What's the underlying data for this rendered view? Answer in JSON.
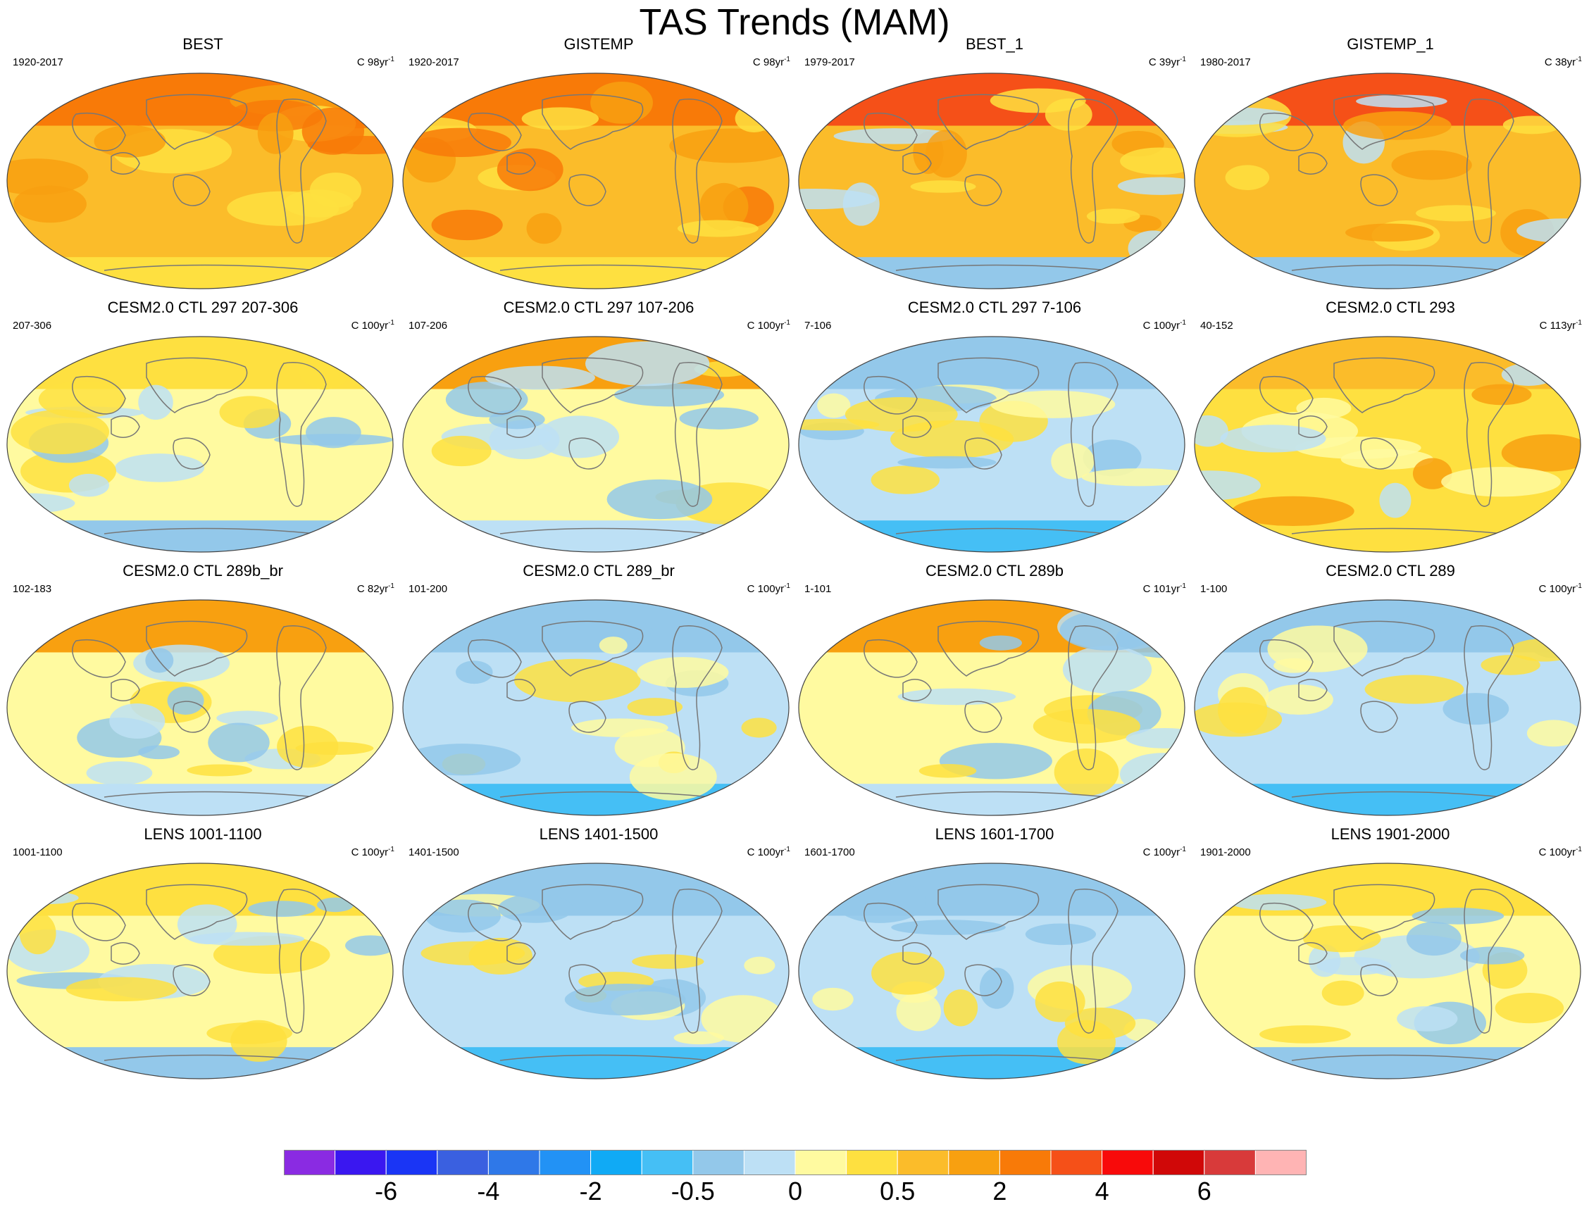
{
  "title": "TAS Trends (MAM)",
  "panels": [
    {
      "title": "BEST",
      "period": "1920-2017",
      "units_prefix": "C 98yr",
      "units_exp": "-1",
      "pattern": "warm"
    },
    {
      "title": "GISTEMP",
      "period": "1920-2017",
      "units_prefix": "C 98yr",
      "units_exp": "-1",
      "pattern": "warm"
    },
    {
      "title": "BEST_1",
      "period": "1979-2017",
      "units_prefix": "C 39yr",
      "units_exp": "-1",
      "pattern": "warm-recent"
    },
    {
      "title": "GISTEMP_1",
      "period": "1980-2017",
      "units_prefix": "C 38yr",
      "units_exp": "-1",
      "pattern": "warm-recent"
    },
    {
      "title": "CESM2.0 CTL 297 207-306",
      "period": "207-306",
      "units_prefix": "C 100yr",
      "units_exp": "-1",
      "pattern": "neutral-a"
    },
    {
      "title": "CESM2.0 CTL 297 107-206",
      "period": "107-206",
      "units_prefix": "C 100yr",
      "units_exp": "-1",
      "pattern": "neutral-warm-north"
    },
    {
      "title": "CESM2.0 CTL 297 7-106",
      "period": "7-106",
      "units_prefix": "C 100yr",
      "units_exp": "-1",
      "pattern": "neutral-cool"
    },
    {
      "title": "CESM2.0 CTL 293",
      "period": "40-152",
      "units_prefix": "C 113yr",
      "units_exp": "-1",
      "pattern": "neutral-warm"
    },
    {
      "title": "CESM2.0 CTL 289b_br",
      "period": "102-183",
      "units_prefix": "C 82yr",
      "units_exp": "-1",
      "pattern": "neutral-warm-north"
    },
    {
      "title": "CESM2.0 CTL 289_br",
      "period": "101-200",
      "units_prefix": "C 100yr",
      "units_exp": "-1",
      "pattern": "neutral-cool"
    },
    {
      "title": "CESM2.0 CTL 289b",
      "period": "1-101",
      "units_prefix": "C 101yr",
      "units_exp": "-1",
      "pattern": "neutral-warm-north"
    },
    {
      "title": "CESM2.0 CTL 289",
      "period": "1-100",
      "units_prefix": "C 100yr",
      "units_exp": "-1",
      "pattern": "neutral-cool"
    },
    {
      "title": "LENS 1001-1100",
      "period": "1001-1100",
      "units_prefix": "C 100yr",
      "units_exp": "-1",
      "pattern": "neutral-a"
    },
    {
      "title": "LENS 1401-1500",
      "period": "1401-1500",
      "units_prefix": "C 100yr",
      "units_exp": "-1",
      "pattern": "neutral-cool"
    },
    {
      "title": "LENS 1601-1700",
      "period": "1601-1700",
      "units_prefix": "C 100yr",
      "units_exp": "-1",
      "pattern": "neutral-cool"
    },
    {
      "title": "LENS 1901-2000",
      "period": "1901-2000",
      "units_prefix": "C 100yr",
      "units_exp": "-1",
      "pattern": "neutral-a"
    }
  ],
  "colorbar": {
    "colors": [
      "#8a2be2",
      "#3a17f0",
      "#1a35f5",
      "#3a60e0",
      "#2f78e8",
      "#2292f5",
      "#10aaf5",
      "#45bff5",
      "#93c8ea",
      "#bde0f5",
      "#fffaa0",
      "#fee040",
      "#fbbc2a",
      "#f8a010",
      "#f87a08",
      "#f55018",
      "#f80a0a",
      "#d00808",
      "#d83a3a",
      "#ffb4b4"
    ],
    "labels": [
      "-6",
      "-4",
      "-2",
      "-0.5",
      "0",
      "0.5",
      "2",
      "4",
      "6"
    ]
  }
}
